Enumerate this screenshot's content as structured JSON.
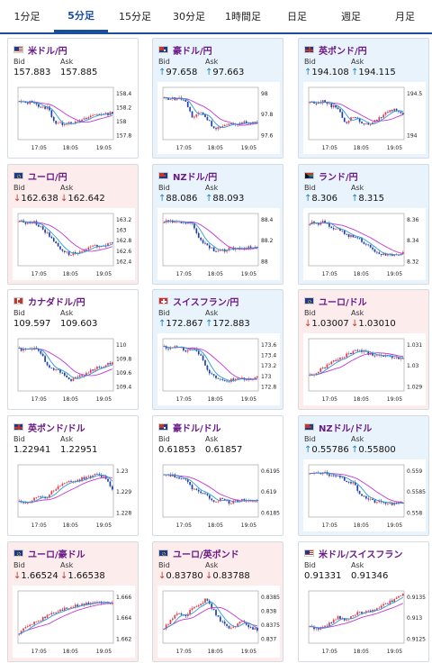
{
  "tabs": [
    "1分足",
    "5分足",
    "15分足",
    "30分足",
    "1時間足",
    "日足",
    "週足",
    "月足"
  ],
  "active_tab": 1,
  "labels": {
    "bid": "Bid",
    "ask": "Ask"
  },
  "colors": {
    "bull": "#e63946",
    "bear": "#1f3fa6",
    "ma1": "#c238d1",
    "ma2": "#2a9ad6"
  },
  "pairs": [
    {
      "title": "米ドル/円",
      "flag": "us",
      "trend": "neutral",
      "arrow": "",
      "bid": "157.883",
      "ask": "157.885",
      "ticks": [
        "158.4",
        "158.2",
        "158",
        "157.8"
      ],
      "xticks": [
        "17:05",
        "18:05",
        "19:05"
      ]
    },
    {
      "title": "豪ドル/円",
      "flag": "au",
      "trend": "up",
      "arrow": "↑",
      "bid": "97.658",
      "ask": "97.663",
      "ticks": [
        "98",
        "97.8",
        "97.6"
      ],
      "xticks": [
        "17:05",
        "18:05",
        "19:05"
      ]
    },
    {
      "title": "英ポンド/円",
      "flag": "gb",
      "trend": "up",
      "arrow": "↑",
      "bid": "194.108",
      "ask": "194.115",
      "ticks": [
        "194.5",
        "194"
      ],
      "xticks": [
        "17:05",
        "18:05",
        "19:05"
      ]
    },
    {
      "title": "ユーロ/円",
      "flag": "eu",
      "trend": "down",
      "arrow": "↓",
      "bid": "162.638",
      "ask": "162.642",
      "ticks": [
        "163.2",
        "163",
        "162.8",
        "162.6",
        "162.4"
      ],
      "xticks": [
        "17:05",
        "18:05",
        "19:05"
      ]
    },
    {
      "title": "NZドル/円",
      "flag": "nz",
      "trend": "up",
      "arrow": "↑",
      "bid": "88.086",
      "ask": "88.093",
      "ticks": [
        "88.4",
        "88.2",
        "88"
      ],
      "xticks": [
        "17:05",
        "18:05",
        "19:05"
      ]
    },
    {
      "title": "ランド/円",
      "flag": "za",
      "trend": "up",
      "arrow": "↑",
      "bid": "8.306",
      "ask": "8.315",
      "ticks": [
        "8.36",
        "8.34",
        "8.32"
      ],
      "xticks": [
        "17:05",
        "18:05",
        "19:05"
      ]
    },
    {
      "title": "カナダドル/円",
      "flag": "ca",
      "trend": "neutral",
      "arrow": "",
      "bid": "109.597",
      "ask": "109.603",
      "ticks": [
        "110",
        "109.8",
        "109.6",
        "109.4"
      ],
      "xticks": [
        "17:05",
        "18:05",
        "19:05"
      ]
    },
    {
      "title": "スイスフラン/円",
      "flag": "ch",
      "trend": "up",
      "arrow": "↑",
      "bid": "172.867",
      "ask": "172.883",
      "ticks": [
        "173.6",
        "173.4",
        "173.2",
        "173",
        "172.8"
      ],
      "xticks": [
        "17:05",
        "18:05",
        "19:05"
      ]
    },
    {
      "title": "ユーロ/ドル",
      "flag": "eu",
      "trend": "down",
      "arrow": "↓",
      "bid": "1.03007",
      "ask": "1.03010",
      "ticks": [
        "1.031",
        "1.03",
        "1.029"
      ],
      "xticks": [
        "17:05",
        "18:05",
        "19:05"
      ]
    },
    {
      "title": "英ポンド/ドル",
      "flag": "gb",
      "trend": "neutral",
      "arrow": "",
      "bid": "1.22941",
      "ask": "1.22951",
      "ticks": [
        "1.23",
        "1.229",
        "1.228"
      ],
      "xticks": [
        "17:05",
        "18:05",
        "19:05"
      ]
    },
    {
      "title": "豪ドル/ドル",
      "flag": "au",
      "trend": "neutral",
      "arrow": "",
      "bid": "0.61853",
      "ask": "0.61857",
      "ticks": [
        "0.6195",
        "0.619",
        "0.6185"
      ],
      "xticks": [
        "17:05",
        "18:05",
        "19:05"
      ]
    },
    {
      "title": "NZドル/ドル",
      "flag": "nz",
      "trend": "up",
      "arrow": "↑",
      "bid": "0.55786",
      "ask": "0.55800",
      "ticks": [
        "0.559",
        "0.5585",
        "0.558"
      ],
      "xticks": [
        "17:05",
        "18:05",
        "19:05"
      ]
    },
    {
      "title": "ユーロ/豪ドル",
      "flag": "eu",
      "trend": "down",
      "arrow": "↓",
      "bid": "1.66524",
      "ask": "1.66538",
      "ticks": [
        "1.666",
        "1.664",
        "1.662"
      ],
      "xticks": [
        "17:05",
        "18:05",
        "19:05"
      ]
    },
    {
      "title": "ユーロ/英ポンド",
      "flag": "eu",
      "trend": "down",
      "arrow": "↓",
      "bid": "0.83780",
      "ask": "0.83788",
      "ticks": [
        "0.8385",
        "0.838",
        "0.8375",
        "0.837"
      ],
      "xticks": [
        "17:05",
        "18:05",
        "19:05"
      ]
    },
    {
      "title": "米ドル/スイスフラン",
      "flag": "us",
      "trend": "neutral",
      "arrow": "",
      "bid": "0.91331",
      "ask": "0.91346",
      "ticks": [
        "0.9135",
        "0.913",
        "0.9125"
      ],
      "xticks": [
        "17:05",
        "18:05",
        "19:05"
      ]
    }
  ]
}
